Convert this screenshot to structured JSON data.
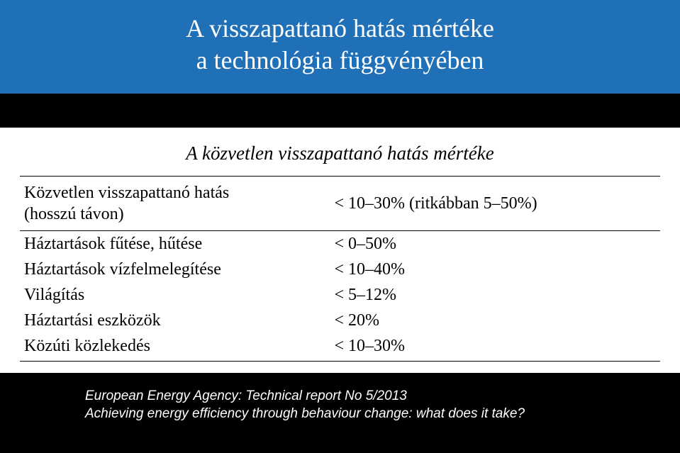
{
  "title": {
    "line1": "A visszapattanó hatás mértéke",
    "line2": "a technológia függvényében"
  },
  "table": {
    "caption": "A közvetlen visszapattanó hatás mértéke",
    "header": {
      "label_line1": "Közvetlen visszapattanó hatás",
      "label_line2": "(hosszú távon)",
      "value": "< 10–30% (ritkábban 5–50%)"
    },
    "rows": [
      {
        "label": "Háztartások fűtése, hűtése",
        "value": "<   0–50%"
      },
      {
        "label": "Háztartások vízfelmelegítése",
        "value": "< 10–40%"
      },
      {
        "label": "Világítás",
        "value": "<   5–12%"
      },
      {
        "label": "Háztartási eszközök",
        "value": "< 20%"
      },
      {
        "label": "Közúti közlekedés",
        "value": "< 10–30%"
      }
    ]
  },
  "source": {
    "line1": "European Energy Agency: Technical report No 5/2013",
    "line2": "Achieving energy efficiency through behaviour change: what does it take?"
  },
  "colors": {
    "banner_bg": "#2070b8",
    "banner_text": "#ffffff",
    "page_bg": "#000000",
    "table_bg": "#ffffff",
    "border": "#000000",
    "footer_text": "#ffffff"
  }
}
